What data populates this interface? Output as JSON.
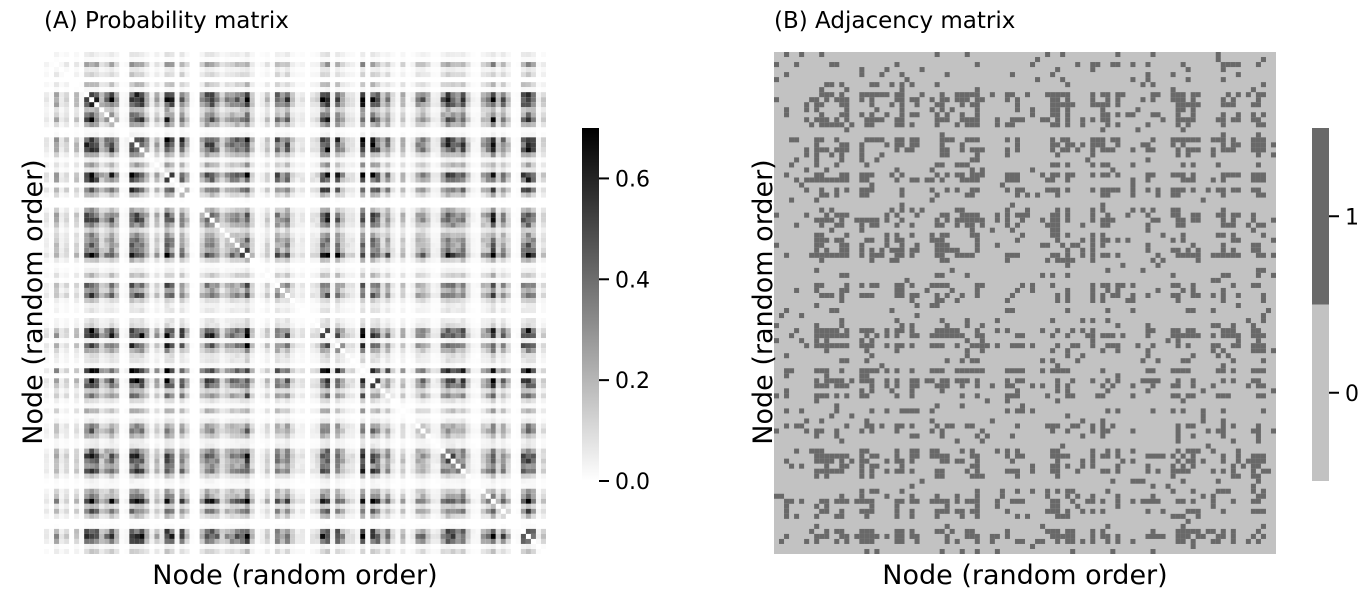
{
  "chart_data": [
    {
      "type": "heatmap",
      "title": "(A) Probability matrix",
      "xlabel": "Node (random order)",
      "ylabel": "Node (random order)",
      "n_nodes": 100,
      "colormap": "Greys",
      "colorbar": {
        "min": 0.0,
        "max": 0.7,
        "ticks": [
          0.0,
          0.2,
          0.4,
          0.6
        ],
        "tick_labels": [
          "0.0",
          "0.2",
          "0.4",
          "0.6"
        ]
      },
      "colors": {
        "low": "#ffffff",
        "high": "#000000"
      }
    },
    {
      "type": "heatmap",
      "title": "(B) Adjacency matrix",
      "xlabel": "Node (random order)",
      "ylabel": "Node (random order)",
      "n_nodes": 100,
      "values": [
        0,
        1
      ],
      "colorbar": {
        "ticks": [
          0,
          1
        ],
        "tick_labels": [
          "0",
          "1"
        ]
      },
      "colors": {
        "0": "#c2c2c2",
        "1": "#696969"
      }
    }
  ]
}
